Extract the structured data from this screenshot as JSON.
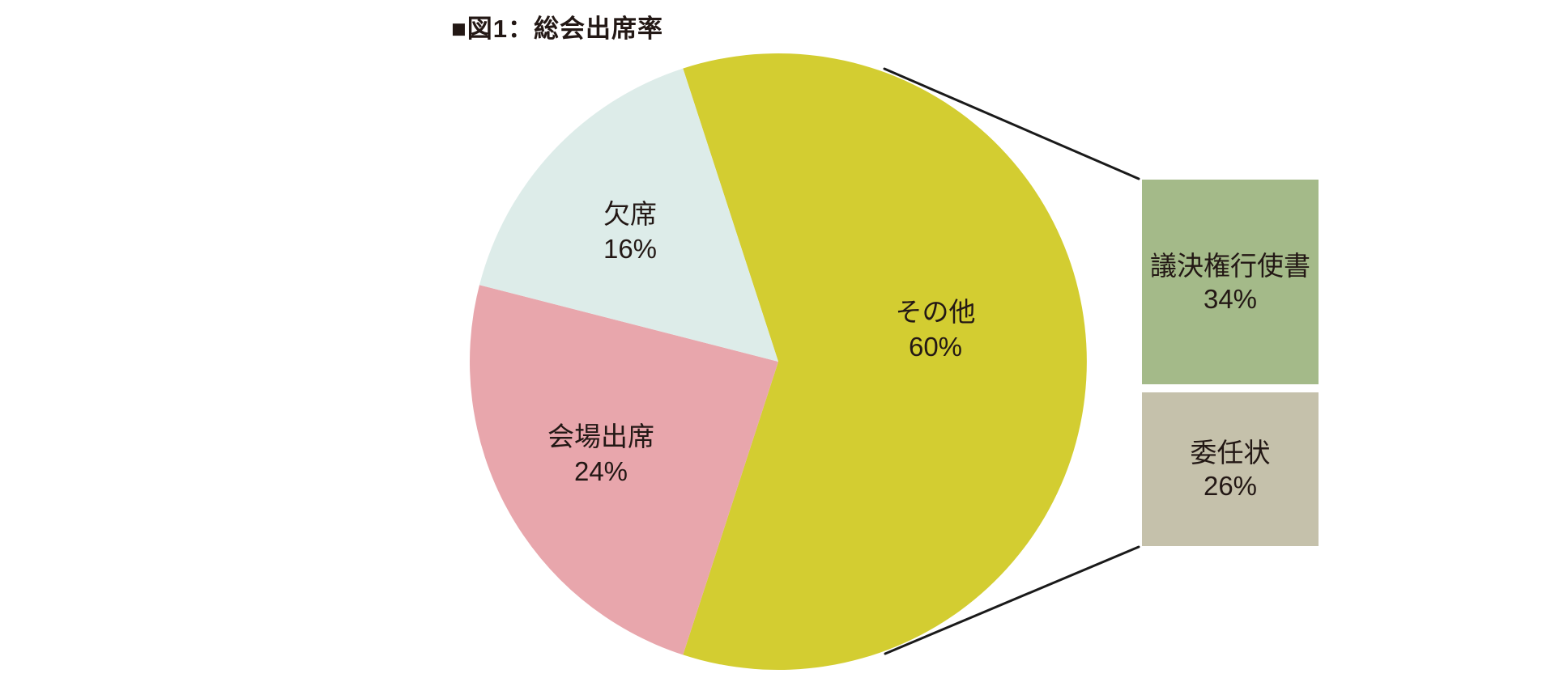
{
  "chart_data": {
    "type": "pie",
    "title": "■図1：総会出席率",
    "slices": [
      {
        "key": "sonota",
        "label": "その他",
        "value": 60,
        "pct": "60%",
        "color": "#d3cd31"
      },
      {
        "key": "kaijo",
        "label": "会場出席",
        "value": 24,
        "pct": "24%",
        "color": "#e8a6ac"
      },
      {
        "key": "kesseki",
        "label": "欠席",
        "value": 16,
        "pct": "16%",
        "color": "#ddece9"
      }
    ],
    "breakdown_of": "その他",
    "breakdown": [
      {
        "key": "giketsuken",
        "label": "議決権行使書",
        "value": 34,
        "pct": "34%",
        "color": "#a4ba89"
      },
      {
        "key": "ininjo",
        "label": "委任状",
        "value": 26,
        "pct": "26%",
        "color": "#c5c1ab"
      }
    ],
    "start_angle_deg": -108,
    "clockwise": true,
    "legend_position": "labels-inside-slices",
    "grid": false,
    "text_color": "#231815",
    "connector_color": "#1a1a1a"
  }
}
